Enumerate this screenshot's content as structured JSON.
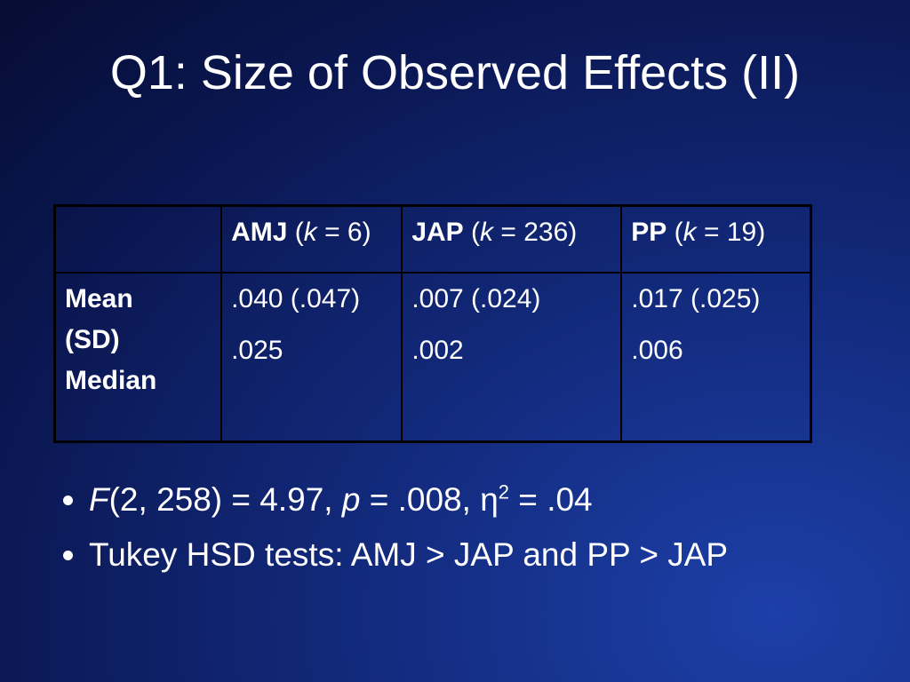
{
  "title": "Q1: Size of Observed Effects (II)",
  "table": {
    "header": [
      [],
      [
        {
          "text": "AMJ",
          "style": "bold"
        },
        {
          "text": " ("
        },
        {
          "text": "k",
          "style": "italic"
        },
        {
          "text": " = 6)"
        }
      ],
      [
        {
          "text": "JAP",
          "style": "bold"
        },
        {
          "text": " ("
        },
        {
          "text": "k",
          "style": "italic"
        },
        {
          "text": " = 236)"
        }
      ],
      [
        {
          "text": "PP",
          "style": "bold"
        },
        {
          "text": " ("
        },
        {
          "text": "k",
          "style": "italic"
        },
        {
          "text": " = 19)"
        }
      ]
    ],
    "rows": [
      [
        [
          "Mean",
          "(SD)",
          "Median"
        ],
        [
          ".040 (.047)",
          ".025"
        ],
        [
          ".007 (.024)",
          ".002"
        ],
        [
          ".017 (.025)",
          ".006"
        ]
      ]
    ]
  },
  "bullets": [
    [
      {
        "text": "F",
        "style": "italic"
      },
      {
        "text": "(2, 258) = 4.97, "
      },
      {
        "text": "p",
        "style": "italic"
      },
      {
        "text": " = .008, η"
      },
      {
        "text": "2",
        "style": "sup"
      },
      {
        "text": " = .04"
      }
    ],
    [
      {
        "text": "Tukey HSD tests: AMJ > JAP and PP > JAP"
      }
    ]
  ]
}
